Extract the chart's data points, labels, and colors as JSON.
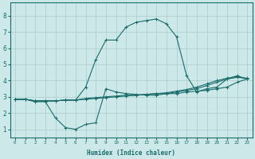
{
  "xlabel": "Humidex (Indice chaleur)",
  "ylabel": "",
  "xlim": [
    -0.5,
    23.5
  ],
  "ylim": [
    0.5,
    8.8
  ],
  "xticks": [
    0,
    1,
    2,
    3,
    4,
    5,
    6,
    7,
    8,
    9,
    10,
    11,
    12,
    13,
    14,
    15,
    16,
    17,
    18,
    19,
    20,
    21,
    22,
    23
  ],
  "xtick_labels": [
    "0",
    "1",
    "2",
    "3",
    "4",
    "5",
    "6",
    "7",
    "8",
    "9",
    "10",
    "11",
    "12",
    "13",
    "14",
    "15",
    "16",
    "17",
    "18",
    "19",
    "20",
    "21",
    "22",
    "23"
  ],
  "yticks": [
    1,
    2,
    3,
    4,
    5,
    6,
    7,
    8
  ],
  "background_color": "#cce8e8",
  "grid_color": "#aacccc",
  "line_color": "#1a6b6b",
  "lines": [
    {
      "x": [
        0,
        1,
        2,
        3,
        4,
        5,
        6,
        7,
        8,
        9,
        10,
        11,
        12,
        13,
        14,
        15,
        16,
        17,
        18,
        19,
        20,
        21,
        22,
        23
      ],
      "y": [
        2.85,
        2.85,
        2.7,
        2.7,
        1.7,
        1.1,
        1.0,
        1.3,
        1.4,
        3.5,
        3.3,
        3.2,
        3.15,
        3.1,
        3.1,
        3.2,
        3.2,
        3.3,
        3.35,
        3.4,
        3.5,
        3.6,
        3.9,
        4.1
      ]
    },
    {
      "x": [
        0,
        1,
        2,
        3,
        4,
        5,
        6,
        7,
        8,
        9,
        10,
        11,
        12,
        13,
        14,
        15,
        16,
        17,
        18,
        19,
        20,
        21,
        22,
        23
      ],
      "y": [
        2.85,
        2.85,
        2.75,
        2.75,
        2.75,
        2.8,
        2.8,
        3.6,
        5.3,
        6.5,
        6.5,
        7.3,
        7.6,
        7.7,
        7.8,
        7.5,
        6.7,
        4.3,
        3.3,
        3.5,
        3.6,
        4.1,
        4.2,
        4.15
      ]
    },
    {
      "x": [
        0,
        1,
        2,
        3,
        4,
        5,
        6,
        7,
        8,
        9,
        10,
        11,
        12,
        13,
        14,
        15,
        16,
        17,
        18,
        19,
        20,
        21,
        22,
        23
      ],
      "y": [
        2.85,
        2.85,
        2.75,
        2.75,
        2.75,
        2.8,
        2.8,
        2.9,
        2.95,
        3.0,
        3.05,
        3.1,
        3.1,
        3.15,
        3.2,
        3.2,
        3.3,
        3.4,
        3.5,
        3.7,
        3.9,
        4.1,
        4.3,
        4.1
      ]
    },
    {
      "x": [
        0,
        1,
        2,
        3,
        4,
        5,
        6,
        7,
        8,
        9,
        10,
        11,
        12,
        13,
        14,
        15,
        16,
        17,
        18,
        19,
        20,
        21,
        22,
        23
      ],
      "y": [
        2.85,
        2.85,
        2.75,
        2.75,
        2.75,
        2.8,
        2.8,
        2.85,
        2.9,
        2.95,
        3.0,
        3.05,
        3.1,
        3.15,
        3.2,
        3.25,
        3.35,
        3.45,
        3.6,
        3.8,
        4.0,
        4.15,
        4.25,
        4.1
      ]
    }
  ]
}
